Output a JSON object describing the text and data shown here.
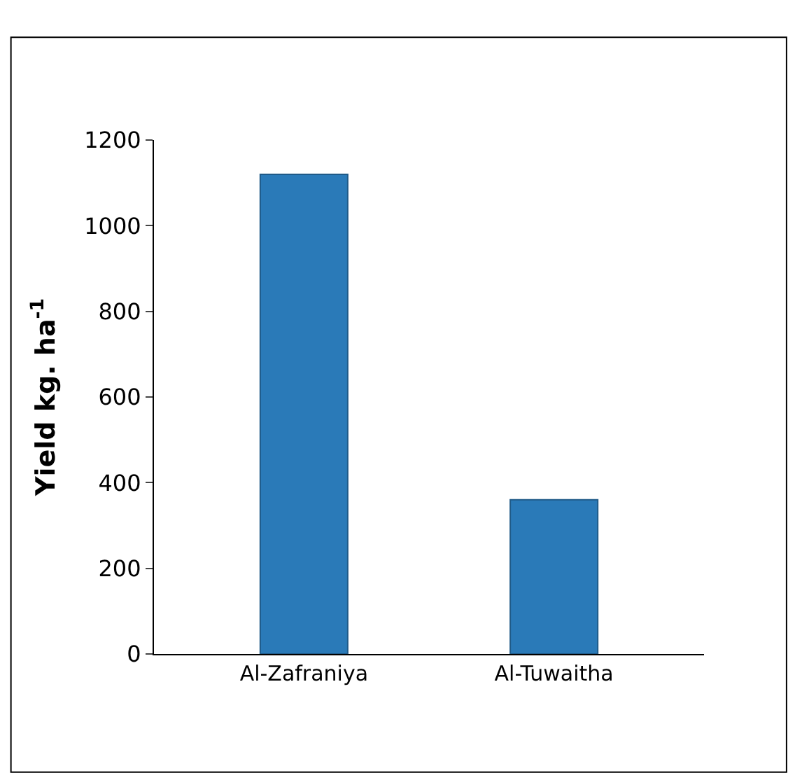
{
  "chart_data": {
    "type": "bar",
    "ylabel": "Yield kg. ha$^{-1}$",
    "categories": [
      "Al-Zafraniya",
      "Al-Tuwaitha"
    ],
    "values": [
      1120,
      360
    ],
    "color": "#2a7ab8",
    "ylim": [
      0,
      1200
    ],
    "yticks": [
      0,
      200,
      400,
      600,
      800,
      1000,
      1200
    ]
  }
}
